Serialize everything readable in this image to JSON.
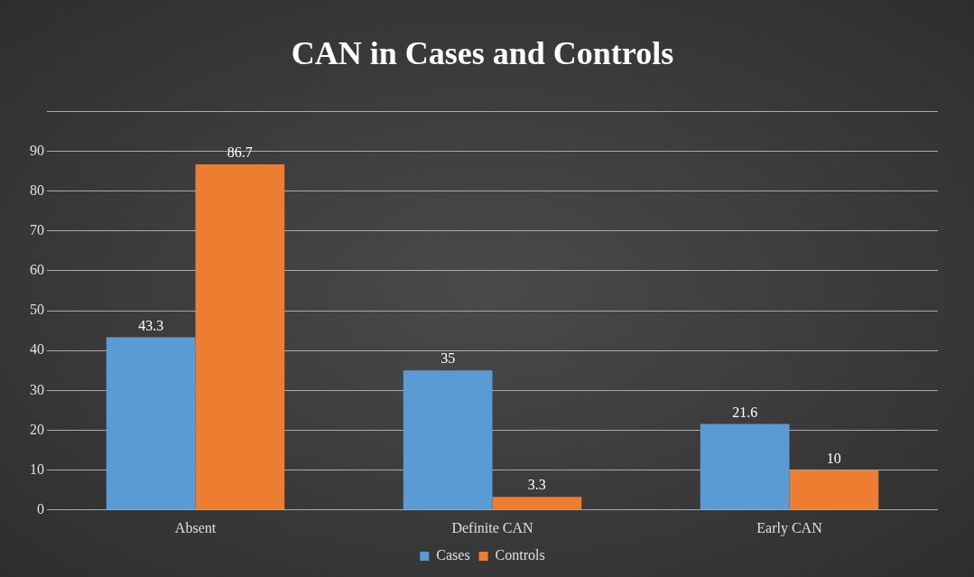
{
  "chart_data": {
    "type": "bar",
    "title": "CAN in Cases and Controls",
    "categories": [
      "Absent",
      "Definite CAN",
      "Early CAN"
    ],
    "series": [
      {
        "name": "Cases",
        "color": "#5b9bd5",
        "values": [
          43.3,
          35,
          21.6
        ]
      },
      {
        "name": "Controls",
        "color": "#ed7d31",
        "values": [
          86.7,
          3.3,
          10
        ]
      }
    ],
    "ylim": [
      0,
      100
    ],
    "yticks": [
      0,
      10,
      20,
      30,
      40,
      50,
      60,
      70,
      80,
      90,
      {
        "value": 100,
        "label": null
      }
    ],
    "grid": "y",
    "legend": "bottom",
    "data_labels": true
  }
}
